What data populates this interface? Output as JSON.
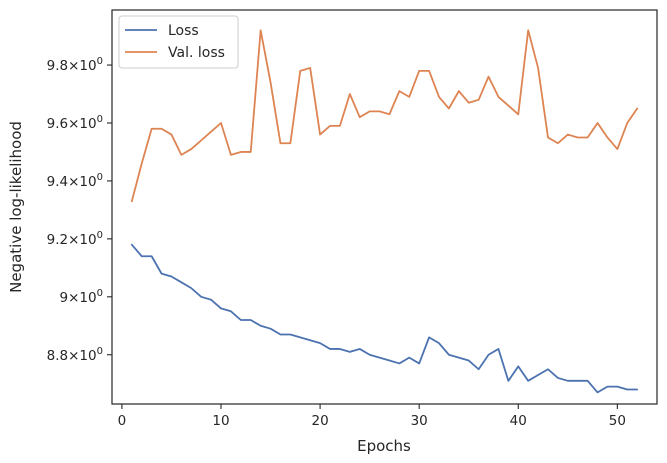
{
  "chart_data": {
    "type": "line",
    "xlabel": "Epochs",
    "ylabel": "Negative log-likelihood",
    "xlim": [
      -1,
      54
    ],
    "ylim": [
      8.63,
      9.99
    ],
    "grid": false,
    "legend_position": "top-left",
    "x_ticks": [
      {
        "value": 0,
        "label": "0"
      },
      {
        "value": 10,
        "label": "10"
      },
      {
        "value": 20,
        "label": "20"
      },
      {
        "value": 30,
        "label": "30"
      },
      {
        "value": 40,
        "label": "40"
      },
      {
        "value": 50,
        "label": "50"
      }
    ],
    "y_ticks": [
      {
        "value": 8.8,
        "base": "8.8",
        "exp": "0"
      },
      {
        "value": 9.0,
        "base": "9",
        "exp": "0"
      },
      {
        "value": 9.2,
        "base": "9.2",
        "exp": "0"
      },
      {
        "value": 9.4,
        "base": "9.4",
        "exp": "0"
      },
      {
        "value": 9.6,
        "base": "9.6",
        "exp": "0"
      },
      {
        "value": 9.8,
        "base": "9.8",
        "exp": "0"
      }
    ],
    "x": [
      1,
      2,
      3,
      4,
      5,
      6,
      7,
      8,
      9,
      10,
      11,
      12,
      13,
      14,
      15,
      16,
      17,
      18,
      19,
      20,
      21,
      22,
      23,
      24,
      25,
      26,
      27,
      28,
      29,
      30,
      31,
      32,
      33,
      34,
      35,
      36,
      37,
      38,
      39,
      40,
      41,
      42,
      43,
      44,
      45,
      46,
      47,
      48,
      49,
      50,
      51,
      52
    ],
    "series": [
      {
        "name": "Loss",
        "color": "#4c72b0",
        "values": [
          9.18,
          9.14,
          9.14,
          9.08,
          9.07,
          9.05,
          9.03,
          9.0,
          8.99,
          8.96,
          8.95,
          8.92,
          8.92,
          8.9,
          8.89,
          8.87,
          8.87,
          8.86,
          8.85,
          8.84,
          8.82,
          8.82,
          8.81,
          8.82,
          8.8,
          8.79,
          8.78,
          8.77,
          8.79,
          8.77,
          8.86,
          8.84,
          8.8,
          8.79,
          8.78,
          8.75,
          8.8,
          8.82,
          8.71,
          8.76,
          8.71,
          8.73,
          8.75,
          8.72,
          8.71,
          8.71,
          8.71,
          8.67,
          8.69,
          8.69,
          8.68,
          8.68
        ]
      },
      {
        "name": "Val. loss",
        "color": "#dd8452",
        "values": [
          9.33,
          9.46,
          9.58,
          9.58,
          9.56,
          9.49,
          9.51,
          9.54,
          9.57,
          9.6,
          9.49,
          9.5,
          9.5,
          9.92,
          9.74,
          9.53,
          9.53,
          9.78,
          9.79,
          9.56,
          9.59,
          9.59,
          9.7,
          9.62,
          9.64,
          9.64,
          9.63,
          9.71,
          9.69,
          9.78,
          9.78,
          9.69,
          9.65,
          9.71,
          9.67,
          9.68,
          9.76,
          9.69,
          9.66,
          9.63,
          9.92,
          9.79,
          9.55,
          9.53,
          9.56,
          9.55,
          9.55,
          9.6,
          9.55,
          9.51,
          9.6,
          9.65
        ]
      }
    ]
  }
}
